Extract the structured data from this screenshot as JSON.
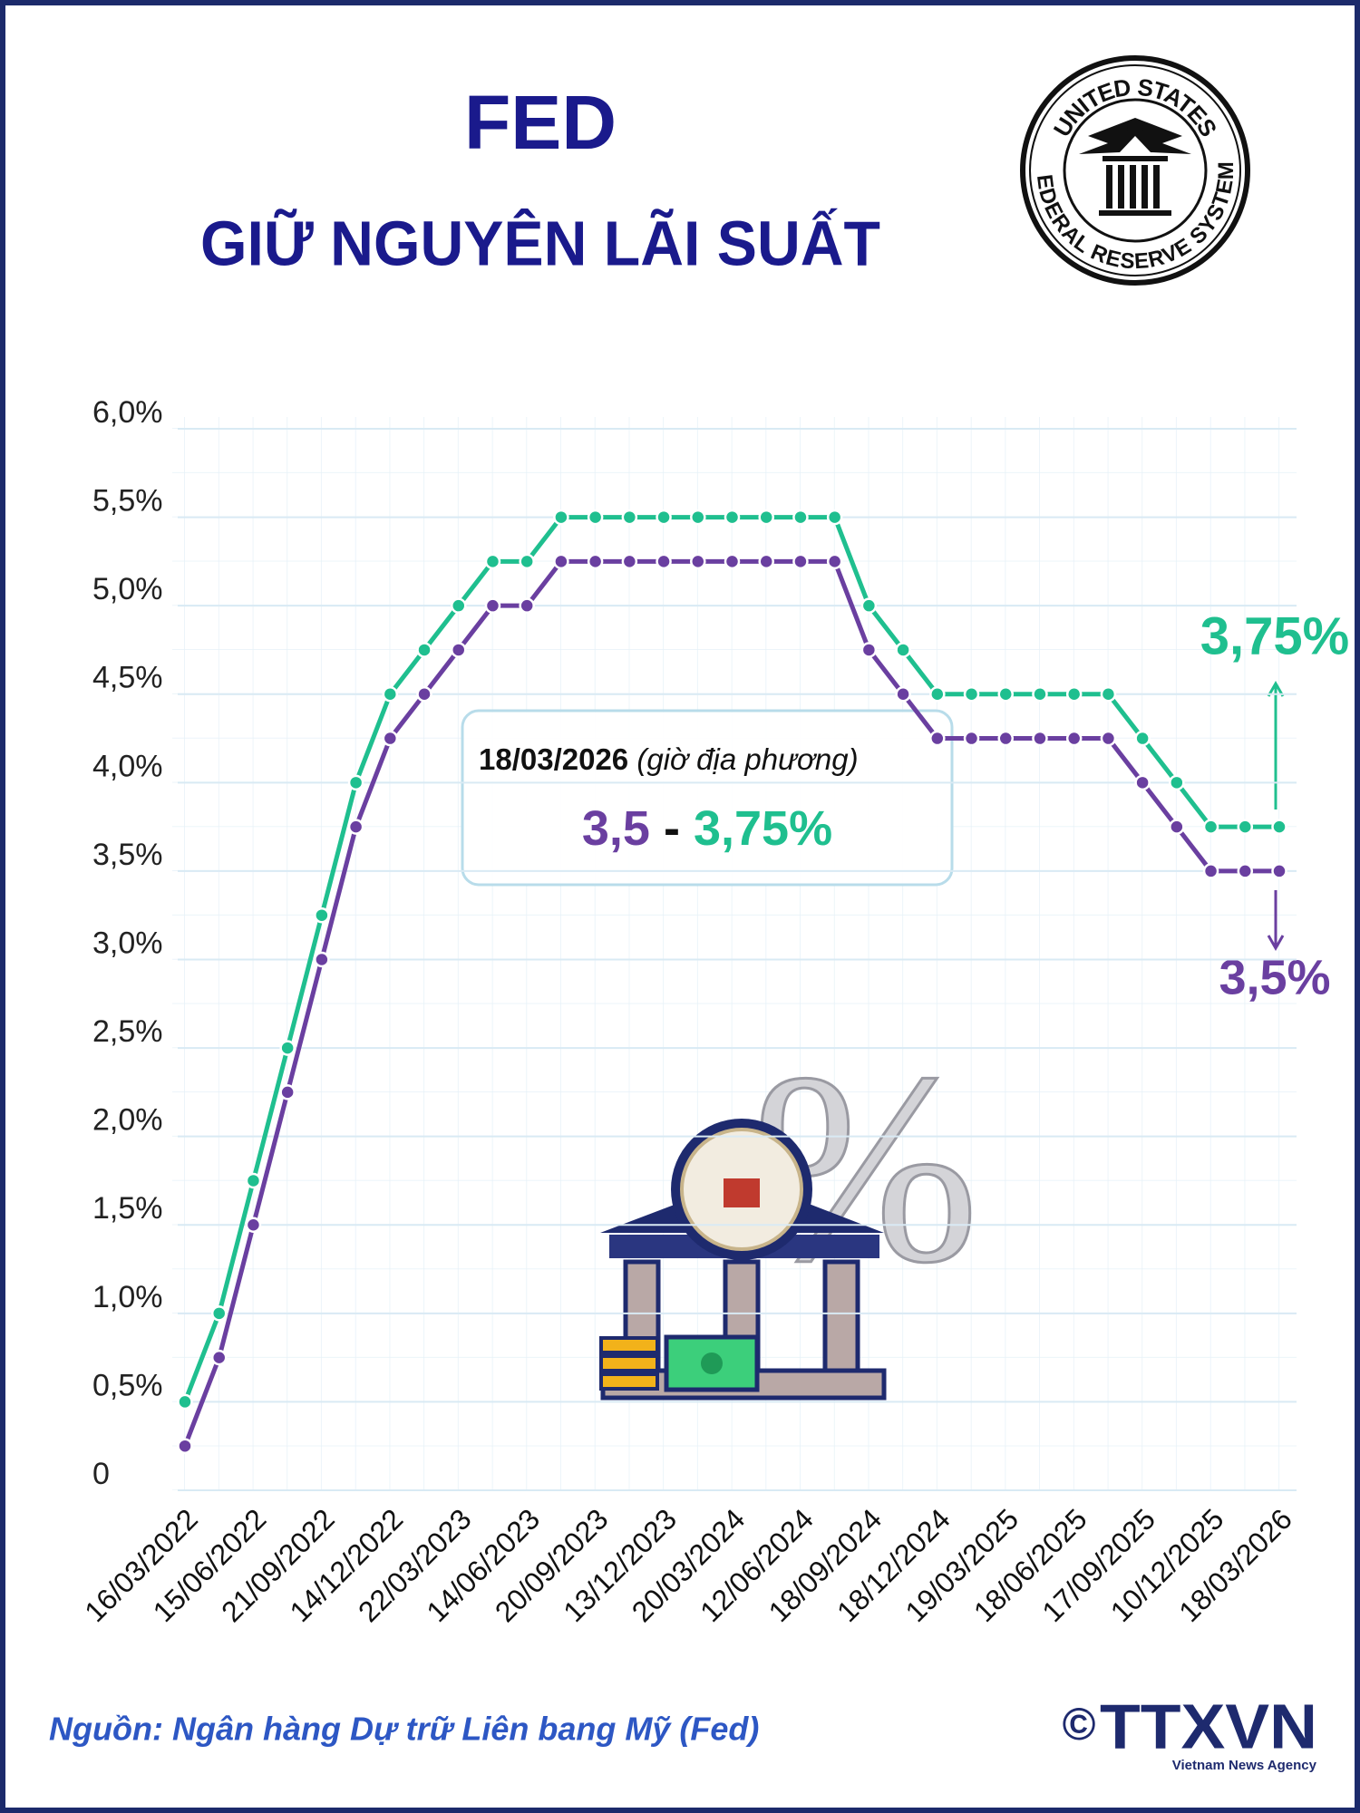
{
  "header": {
    "title": "FED",
    "subtitle": "GIỮ NGUYÊN LÃI SUẤT"
  },
  "seal": {
    "top": "UNITED STATES",
    "bottom": "FEDERAL RESERVE SYSTEM"
  },
  "chart_data": {
    "type": "line",
    "categories": [
      "16/03/2022",
      null,
      "15/06/2022",
      null,
      "21/09/2022",
      null,
      "14/12/2022",
      null,
      "22/03/2023",
      null,
      "14/06/2023",
      null,
      "20/09/2023",
      null,
      "13/12/2023",
      null,
      "20/03/2024",
      null,
      "12/06/2024",
      null,
      "18/09/2024",
      null,
      "18/12/2024",
      null,
      "19/03/2025",
      null,
      "18/06/2025",
      null,
      "17/09/2025",
      null,
      "10/12/2025",
      null,
      "18/03/2026"
    ],
    "series": [
      {
        "color": "#1fbf8f",
        "values": [
          0.5,
          1.0,
          1.75,
          2.5,
          3.25,
          4.0,
          4.5,
          4.75,
          5.0,
          5.25,
          5.25,
          5.5,
          5.5,
          5.5,
          5.5,
          5.5,
          5.5,
          5.5,
          5.5,
          5.5,
          5.0,
          4.75,
          4.5,
          4.5,
          4.5,
          4.5,
          4.5,
          4.5,
          4.25,
          4.0,
          3.75,
          3.75,
          3.75
        ]
      },
      {
        "color": "#6a3fa0",
        "values": [
          0.25,
          0.75,
          1.5,
          2.25,
          3.0,
          3.75,
          4.25,
          4.5,
          4.75,
          5.0,
          5.0,
          5.25,
          5.25,
          5.25,
          5.25,
          5.25,
          5.25,
          5.25,
          5.25,
          5.25,
          4.75,
          4.5,
          4.25,
          4.25,
          4.25,
          4.25,
          4.25,
          4.25,
          4.0,
          3.75,
          3.5,
          3.5,
          3.5
        ]
      }
    ],
    "ylim": [
      0,
      6
    ],
    "yticks": [
      0,
      {
        "value": 0.5,
        "label": "0,5%"
      },
      {
        "value": 1,
        "label": "1,0%"
      },
      {
        "value": 1.5,
        "label": "1,5%"
      },
      {
        "value": 2,
        "label": "2,0%"
      },
      {
        "value": 2.5,
        "label": "2,5%"
      },
      {
        "value": 3,
        "label": "3,0%"
      },
      {
        "value": 3.5,
        "label": "3,5%"
      },
      {
        "value": 4,
        "label": "4,0%"
      },
      {
        "value": 4.5,
        "label": "4,5%"
      },
      {
        "value": 5,
        "label": "5,0%"
      },
      {
        "value": 5.5,
        "label": "5,5%"
      },
      {
        "value": 6,
        "label": "6,0%"
      }
    ],
    "grid": true,
    "annotation": {
      "date": "18/03/2026",
      "note": "(giờ địa phương)",
      "low": "3,5",
      "sep": "-",
      "high": "3,75%"
    },
    "end_labels": {
      "upper": "3,75%",
      "lower": "3,5%"
    }
  },
  "illustration": {
    "symbol": "%"
  },
  "footer": {
    "source": "Nguồn: Ngân hàng Dự trữ Liên bang Mỹ (Fed)",
    "copyright": "©",
    "logo": "TTXVN",
    "agency": "Vietnam News Agency"
  }
}
